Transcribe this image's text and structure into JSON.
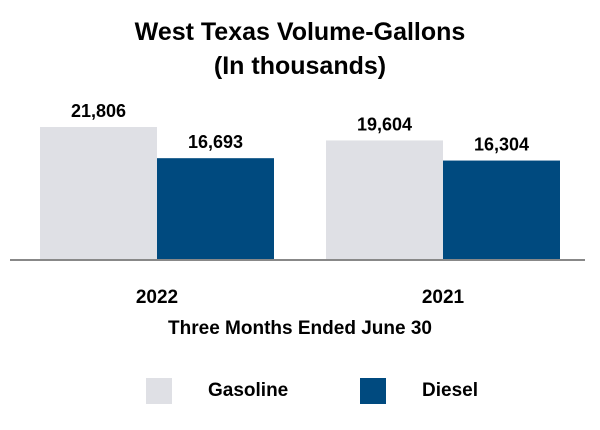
{
  "chart_data": {
    "type": "bar",
    "title": "West Texas Volume-Gallons",
    "subtitle": "(In thousands)",
    "xlabel": "Three Months Ended June 30",
    "ylabel": "",
    "categories": [
      "2022",
      "2021"
    ],
    "series": [
      {
        "name": "Gasoline",
        "values": [
          21806,
          19604
        ],
        "labels": [
          "21,806",
          "19,604"
        ],
        "color": "#dfe0e5"
      },
      {
        "name": "Diesel",
        "values": [
          16693,
          16304
        ],
        "labels": [
          "16,693",
          "16,304"
        ],
        "color": "#004a7f"
      }
    ],
    "ylim": [
      0,
      21806
    ],
    "grid": false,
    "legend_position": "bottom"
  }
}
